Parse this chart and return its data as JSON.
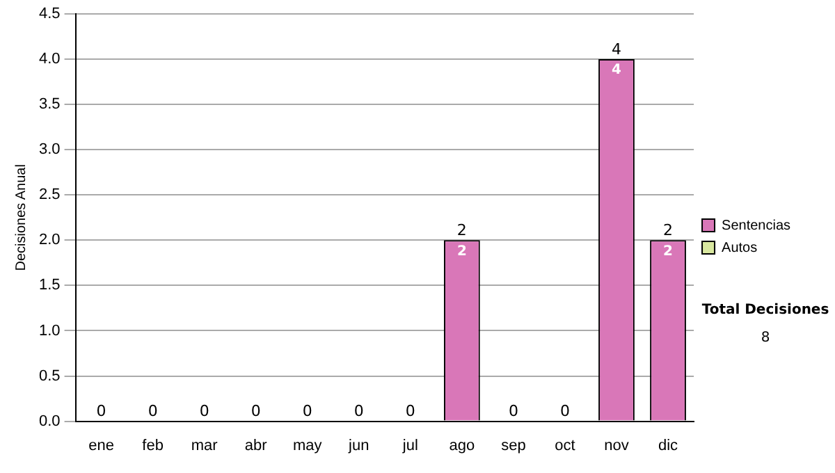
{
  "chart_data": {
    "type": "bar",
    "stacked": true,
    "ylabel": "Decisiones Anual",
    "categories": [
      "ene",
      "feb",
      "mar",
      "abr",
      "may",
      "jun",
      "jul",
      "ago",
      "sep",
      "oct",
      "nov",
      "dic"
    ],
    "series": [
      {
        "name": "Sentencias",
        "color": "#d977b8",
        "values": [
          0,
          0,
          0,
          0,
          0,
          0,
          0,
          2,
          0,
          0,
          4,
          2
        ],
        "value_labels": [
          null,
          null,
          null,
          null,
          null,
          null,
          null,
          "2",
          null,
          null,
          "4",
          "2"
        ]
      },
      {
        "name": "Autos",
        "color": "#d9e8a0",
        "values": [
          0,
          0,
          0,
          0,
          0,
          0,
          0,
          0,
          0,
          0,
          0,
          0
        ]
      }
    ],
    "totals": [
      "0",
      "0",
      "0",
      "0",
      "0",
      "0",
      "0",
      "2",
      "0",
      "0",
      "4",
      "2"
    ],
    "ylim": [
      0,
      4.5
    ],
    "yticks": [
      {
        "value": 0,
        "label": "0.0"
      },
      0.5,
      {
        "value": 1,
        "label": "1.0"
      },
      1.5,
      {
        "value": 2,
        "label": "2.0"
      },
      2.5,
      {
        "value": 3,
        "label": "3.0"
      },
      3.5,
      {
        "value": 4,
        "label": "4.0"
      },
      4.5
    ],
    "grid": "y",
    "legend": "right",
    "annotations": [
      "Total Decisiones",
      "8"
    ]
  }
}
